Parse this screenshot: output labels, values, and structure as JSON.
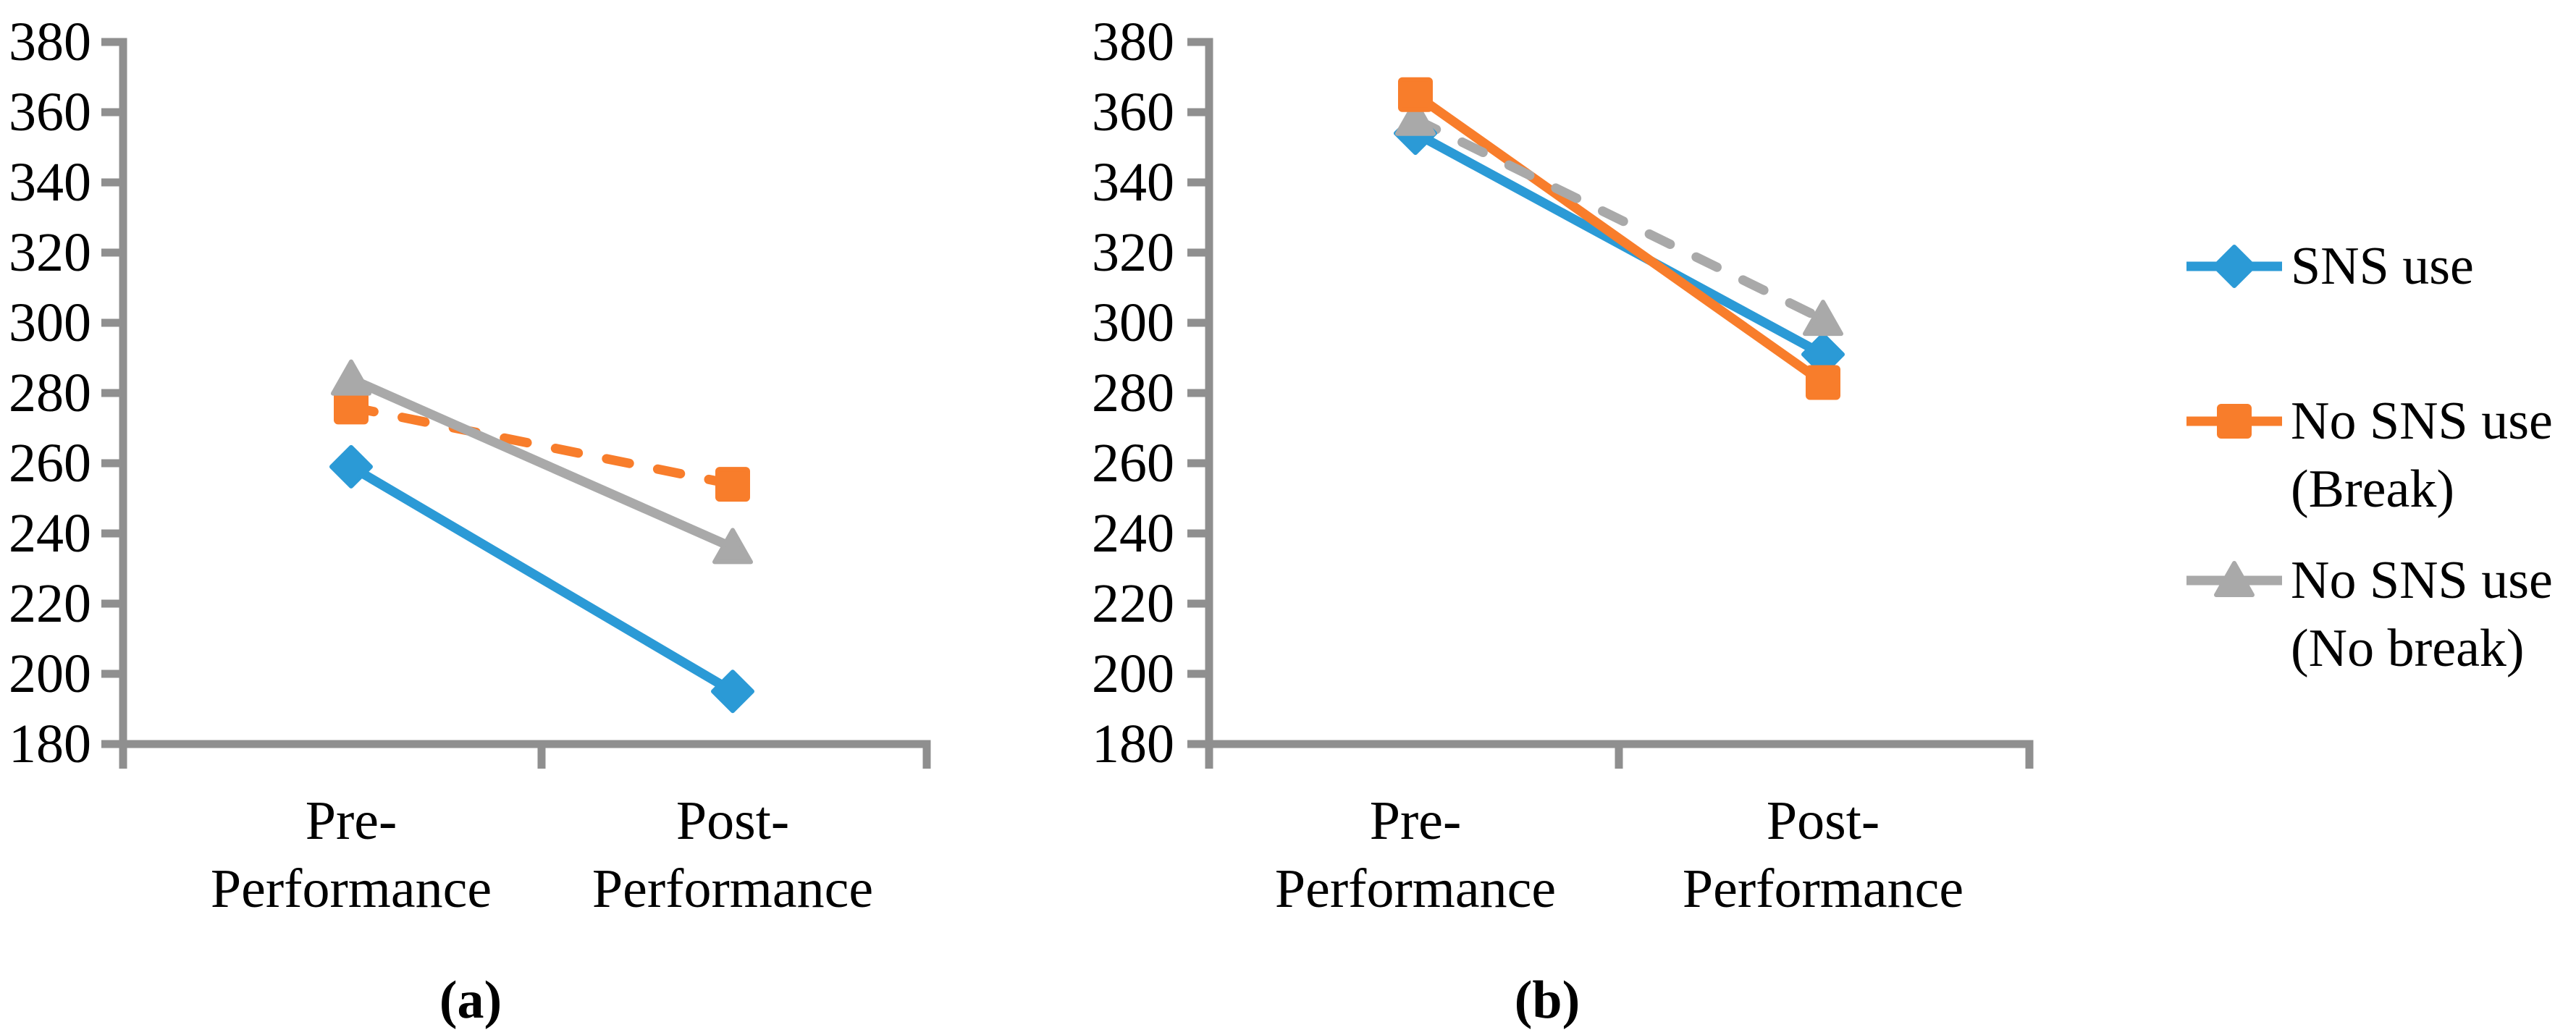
{
  "figure": {
    "background": "#ffffff",
    "colors": {
      "series_blue": "#2B9AD6",
      "series_orange": "#F87D2B",
      "series_gray": "#A9A9A9",
      "axis": "#8F8F8F",
      "text": "#000000"
    }
  },
  "legend": {
    "position": "right",
    "items": [
      {
        "key": "sns-use",
        "lines": [
          "SNS use"
        ],
        "color": "series_blue",
        "marker": "diamond",
        "line_style": "solid"
      },
      {
        "key": "no-sns-use-break",
        "lines": [
          "No SNS use",
          "(Break)"
        ],
        "color": "series_orange",
        "marker": "square",
        "line_style": "solid"
      },
      {
        "key": "no-sns-no-break",
        "lines": [
          "No SNS use",
          "(No break)"
        ],
        "color": "series_gray",
        "marker": "triangle",
        "line_style": "solid"
      }
    ]
  },
  "chart_data": [
    {
      "id": "a",
      "type": "line",
      "caption": "(a)",
      "ylim": [
        180,
        380
      ],
      "ytick_step": 20,
      "y_tick_labels": [
        "380",
        "360",
        "340",
        "320",
        "300",
        "280",
        "260",
        "240",
        "220",
        "200",
        "180"
      ],
      "grid": false,
      "x": [
        "Pre-Performance",
        "Post-Performance"
      ],
      "categories": [
        [
          "Pre-",
          "Performance"
        ],
        [
          "Post-",
          "Performance"
        ]
      ],
      "series": [
        {
          "name": "No SNS use (Break)",
          "key": "no-sns-use-break",
          "color": "series_orange",
          "marker": "square",
          "dashed": true,
          "values": [
            276,
            254
          ]
        },
        {
          "name": "No SNS use (No break)",
          "key": "no-sns-no-break",
          "color": "series_gray",
          "marker": "triangle",
          "dashed": false,
          "values": [
            284,
            236
          ]
        },
        {
          "name": "SNS use",
          "key": "sns-use",
          "color": "series_blue",
          "marker": "diamond",
          "dashed": false,
          "values": [
            259,
            195
          ]
        }
      ],
      "marker_order": [
        0,
        1,
        2
      ]
    },
    {
      "id": "b",
      "type": "line",
      "caption": "(b)",
      "ylim": [
        180,
        380
      ],
      "ytick_step": 20,
      "y_tick_labels": [
        "380",
        "360",
        "340",
        "320",
        "300",
        "280",
        "260",
        "240",
        "220",
        "200",
        "180"
      ],
      "grid": false,
      "x": [
        "Pre-Performance",
        "Post-Performance"
      ],
      "categories": [
        [
          "Pre-",
          "Performance"
        ],
        [
          "Post-",
          "Performance"
        ]
      ],
      "series": [
        {
          "name": "SNS use",
          "key": "sns-use",
          "color": "series_blue",
          "marker": "diamond",
          "dashed": false,
          "values": [
            354,
            291
          ]
        },
        {
          "name": "No SNS use (Break)",
          "key": "no-sns-use-break",
          "color": "series_orange",
          "marker": "square",
          "dashed": false,
          "values": [
            365,
            283
          ]
        },
        {
          "name": "No SNS use (No break)",
          "key": "no-sns-no-break",
          "color": "series_gray",
          "marker": "triangle",
          "dashed": true,
          "values": [
            358,
            301
          ]
        }
      ],
      "marker_order": [
        0,
        2,
        1
      ]
    }
  ]
}
